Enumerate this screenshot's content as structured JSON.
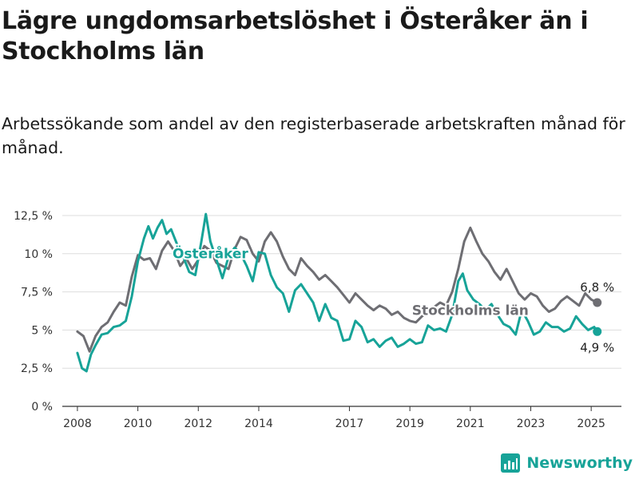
{
  "header": {
    "title": "Lägre ungdomsarbetslöshet i Österåker än i Stockholms län",
    "subtitle": "Arbetssökande som andel av den registerbaserade arbetskraften månad för månad."
  },
  "brand": {
    "name": "Newsworthy"
  },
  "colors": {
    "osteraker": "#17a398",
    "stockholm": "#6e6e73",
    "grid": "#dddddd",
    "axis": "#333333"
  },
  "chart_data": {
    "type": "line",
    "y_tick_labels": [
      "0 %",
      "2,5 %",
      "5 %",
      "7,5 %",
      "10 %",
      "12,5 %"
    ],
    "y_ticks": [
      0,
      2.5,
      5,
      7.5,
      10,
      12.5
    ],
    "x_tick_labels": [
      "2008",
      "2010",
      "2012",
      "2014",
      "2017",
      "2019",
      "2021",
      "2023",
      "2025"
    ],
    "x_ticks": [
      2008,
      2010,
      2012,
      2014,
      2017,
      2019,
      2021,
      2023,
      2025
    ],
    "xlim": [
      2007.5,
      2026.0
    ],
    "ylim": [
      0,
      12.5
    ],
    "grid": true,
    "series": [
      {
        "name": "Stockholms län",
        "color": "#6e6e73",
        "points": [
          [
            2008.0,
            4.9
          ],
          [
            2008.2,
            4.6
          ],
          [
            2008.4,
            3.6
          ],
          [
            2008.6,
            4.6
          ],
          [
            2008.8,
            5.2
          ],
          [
            2009.0,
            5.5
          ],
          [
            2009.2,
            6.2
          ],
          [
            2009.4,
            6.8
          ],
          [
            2009.6,
            6.6
          ],
          [
            2009.8,
            8.5
          ],
          [
            2010.0,
            9.9
          ],
          [
            2010.2,
            9.6
          ],
          [
            2010.4,
            9.7
          ],
          [
            2010.6,
            9.0
          ],
          [
            2010.8,
            10.2
          ],
          [
            2011.0,
            10.8
          ],
          [
            2011.2,
            10.2
          ],
          [
            2011.4,
            9.2
          ],
          [
            2011.6,
            9.7
          ],
          [
            2011.8,
            9.0
          ],
          [
            2012.0,
            9.6
          ],
          [
            2012.2,
            10.5
          ],
          [
            2012.4,
            10.2
          ],
          [
            2012.6,
            9.4
          ],
          [
            2012.8,
            9.2
          ],
          [
            2013.0,
            9.0
          ],
          [
            2013.2,
            10.3
          ],
          [
            2013.4,
            11.1
          ],
          [
            2013.6,
            10.9
          ],
          [
            2013.8,
            10.0
          ],
          [
            2014.0,
            9.5
          ],
          [
            2014.2,
            10.8
          ],
          [
            2014.4,
            11.4
          ],
          [
            2014.6,
            10.8
          ],
          [
            2014.8,
            9.8
          ],
          [
            2015.0,
            9.0
          ],
          [
            2015.2,
            8.6
          ],
          [
            2015.4,
            9.7
          ],
          [
            2015.6,
            9.2
          ],
          [
            2015.8,
            8.8
          ],
          [
            2016.0,
            8.3
          ],
          [
            2016.2,
            8.6
          ],
          [
            2016.4,
            8.2
          ],
          [
            2016.6,
            7.8
          ],
          [
            2016.8,
            7.3
          ],
          [
            2017.0,
            6.8
          ],
          [
            2017.2,
            7.4
          ],
          [
            2017.4,
            7.0
          ],
          [
            2017.6,
            6.6
          ],
          [
            2017.8,
            6.3
          ],
          [
            2018.0,
            6.6
          ],
          [
            2018.2,
            6.4
          ],
          [
            2018.4,
            6.0
          ],
          [
            2018.6,
            6.2
          ],
          [
            2018.8,
            5.8
          ],
          [
            2019.0,
            5.6
          ],
          [
            2019.2,
            5.5
          ],
          [
            2019.4,
            5.9
          ],
          [
            2019.6,
            6.2
          ],
          [
            2019.8,
            6.5
          ],
          [
            2020.0,
            6.8
          ],
          [
            2020.2,
            6.6
          ],
          [
            2020.4,
            7.5
          ],
          [
            2020.6,
            9.0
          ],
          [
            2020.8,
            10.8
          ],
          [
            2021.0,
            11.7
          ],
          [
            2021.2,
            10.8
          ],
          [
            2021.4,
            10.0
          ],
          [
            2021.6,
            9.5
          ],
          [
            2021.8,
            8.8
          ],
          [
            2022.0,
            8.3
          ],
          [
            2022.2,
            9.0
          ],
          [
            2022.4,
            8.2
          ],
          [
            2022.6,
            7.4
          ],
          [
            2022.8,
            7.0
          ],
          [
            2023.0,
            7.4
          ],
          [
            2023.2,
            7.2
          ],
          [
            2023.4,
            6.6
          ],
          [
            2023.6,
            6.2
          ],
          [
            2023.8,
            6.4
          ],
          [
            2024.0,
            6.9
          ],
          [
            2024.2,
            7.2
          ],
          [
            2024.4,
            6.9
          ],
          [
            2024.6,
            6.6
          ],
          [
            2024.8,
            7.4
          ],
          [
            2025.0,
            7.0
          ],
          [
            2025.2,
            6.8
          ]
        ],
        "end_label": "6,8 %",
        "inline_label": "Stockholms län",
        "inline_label_at": [
          2021.0,
          6.0
        ]
      },
      {
        "name": "Österåker",
        "color": "#17a398",
        "points": [
          [
            2008.0,
            3.5
          ],
          [
            2008.15,
            2.5
          ],
          [
            2008.3,
            2.3
          ],
          [
            2008.45,
            3.4
          ],
          [
            2008.6,
            4.0
          ],
          [
            2008.8,
            4.7
          ],
          [
            2009.0,
            4.8
          ],
          [
            2009.2,
            5.2
          ],
          [
            2009.4,
            5.3
          ],
          [
            2009.6,
            5.6
          ],
          [
            2009.8,
            7.2
          ],
          [
            2010.0,
            9.5
          ],
          [
            2010.2,
            11.0
          ],
          [
            2010.35,
            11.8
          ],
          [
            2010.5,
            11.0
          ],
          [
            2010.65,
            11.7
          ],
          [
            2010.8,
            12.2
          ],
          [
            2010.95,
            11.3
          ],
          [
            2011.1,
            11.6
          ],
          [
            2011.3,
            10.6
          ],
          [
            2011.5,
            9.8
          ],
          [
            2011.7,
            8.8
          ],
          [
            2011.9,
            8.6
          ],
          [
            2012.1,
            10.8
          ],
          [
            2012.25,
            12.6
          ],
          [
            2012.4,
            10.8
          ],
          [
            2012.6,
            9.6
          ],
          [
            2012.8,
            8.4
          ],
          [
            2013.0,
            9.8
          ],
          [
            2013.2,
            10.4
          ],
          [
            2013.4,
            10.0
          ],
          [
            2013.6,
            9.2
          ],
          [
            2013.8,
            8.2
          ],
          [
            2014.0,
            10.1
          ],
          [
            2014.2,
            10.0
          ],
          [
            2014.4,
            8.6
          ],
          [
            2014.6,
            7.8
          ],
          [
            2014.8,
            7.4
          ],
          [
            2015.0,
            6.2
          ],
          [
            2015.2,
            7.6
          ],
          [
            2015.4,
            8.0
          ],
          [
            2015.6,
            7.4
          ],
          [
            2015.8,
            6.8
          ],
          [
            2016.0,
            5.6
          ],
          [
            2016.2,
            6.7
          ],
          [
            2016.4,
            5.8
          ],
          [
            2016.6,
            5.6
          ],
          [
            2016.8,
            4.3
          ],
          [
            2017.0,
            4.4
          ],
          [
            2017.2,
            5.6
          ],
          [
            2017.4,
            5.2
          ],
          [
            2017.6,
            4.2
          ],
          [
            2017.8,
            4.4
          ],
          [
            2018.0,
            3.9
          ],
          [
            2018.2,
            4.3
          ],
          [
            2018.4,
            4.5
          ],
          [
            2018.6,
            3.9
          ],
          [
            2018.8,
            4.1
          ],
          [
            2019.0,
            4.4
          ],
          [
            2019.2,
            4.1
          ],
          [
            2019.4,
            4.2
          ],
          [
            2019.6,
            5.3
          ],
          [
            2019.8,
            5.0
          ],
          [
            2020.0,
            5.1
          ],
          [
            2020.2,
            4.9
          ],
          [
            2020.4,
            6.0
          ],
          [
            2020.6,
            8.2
          ],
          [
            2020.75,
            8.7
          ],
          [
            2020.9,
            7.6
          ],
          [
            2021.1,
            7.0
          ],
          [
            2021.3,
            6.7
          ],
          [
            2021.5,
            6.3
          ],
          [
            2021.7,
            6.7
          ],
          [
            2021.9,
            6.0
          ],
          [
            2022.1,
            5.4
          ],
          [
            2022.3,
            5.2
          ],
          [
            2022.5,
            4.7
          ],
          [
            2022.7,
            6.3
          ],
          [
            2022.9,
            5.6
          ],
          [
            2023.1,
            4.7
          ],
          [
            2023.3,
            4.9
          ],
          [
            2023.5,
            5.5
          ],
          [
            2023.7,
            5.2
          ],
          [
            2023.9,
            5.2
          ],
          [
            2024.1,
            4.9
          ],
          [
            2024.3,
            5.1
          ],
          [
            2024.5,
            5.9
          ],
          [
            2024.7,
            5.4
          ],
          [
            2024.9,
            5.0
          ],
          [
            2025.1,
            5.2
          ],
          [
            2025.2,
            4.9
          ]
        ],
        "end_label": "4,9 %",
        "inline_label": "Österåker",
        "inline_label_at": [
          2012.4,
          9.7
        ]
      }
    ]
  }
}
